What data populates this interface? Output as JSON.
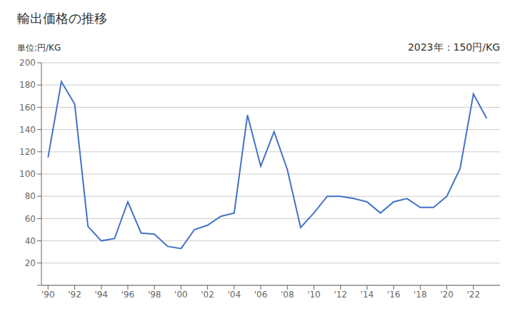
{
  "chart_data": {
    "type": "line",
    "title": "輸出価格の推移",
    "ylabel": "単位:円/KG",
    "annotations": [
      "2023年：150円/KG"
    ],
    "x": [
      1990,
      1991,
      1992,
      1993,
      1994,
      1995,
      1996,
      1997,
      1998,
      1999,
      2000,
      2001,
      2002,
      2003,
      2004,
      2005,
      2006,
      2007,
      2008,
      2009,
      2010,
      2011,
      2012,
      2013,
      2014,
      2015,
      2016,
      2017,
      2018,
      2019,
      2020,
      2021,
      2022,
      2023
    ],
    "values": [
      115,
      183,
      163,
      53,
      40,
      42,
      75,
      47,
      46,
      35,
      33,
      50,
      54,
      62,
      65,
      153,
      107,
      138,
      104,
      52,
      65,
      80,
      80,
      78,
      75,
      65,
      75,
      78,
      70,
      70,
      80,
      105,
      172,
      150
    ],
    "color": "#4472C4",
    "xlim": [
      1989.5,
      2024.0
    ],
    "xticks": [
      {
        "value": 1990,
        "label": "'90"
      },
      {
        "value": 1992,
        "label": "'92"
      },
      {
        "value": 1994,
        "label": "'94"
      },
      {
        "value": 1996,
        "label": "'96"
      },
      {
        "value": 1998,
        "label": "'98"
      },
      {
        "value": 2000,
        "label": "'00"
      },
      {
        "value": 2002,
        "label": "'02"
      },
      {
        "value": 2004,
        "label": "'04"
      },
      {
        "value": 2006,
        "label": "'06"
      },
      {
        "value": 2008,
        "label": "'08"
      },
      {
        "value": 2010,
        "label": "'10"
      },
      {
        "value": 2012,
        "label": "'12"
      },
      {
        "value": 2014,
        "label": "'14"
      },
      {
        "value": 2016,
        "label": "'16"
      },
      {
        "value": 2018,
        "label": "'18"
      },
      {
        "value": 2020,
        "label": "'20"
      },
      {
        "value": 2022,
        "label": "'22"
      }
    ],
    "ylim": [
      0,
      200
    ],
    "yticks": [
      0,
      20,
      40,
      60,
      80,
      100,
      120,
      140,
      160,
      180,
      200
    ],
    "grid": "y"
  }
}
